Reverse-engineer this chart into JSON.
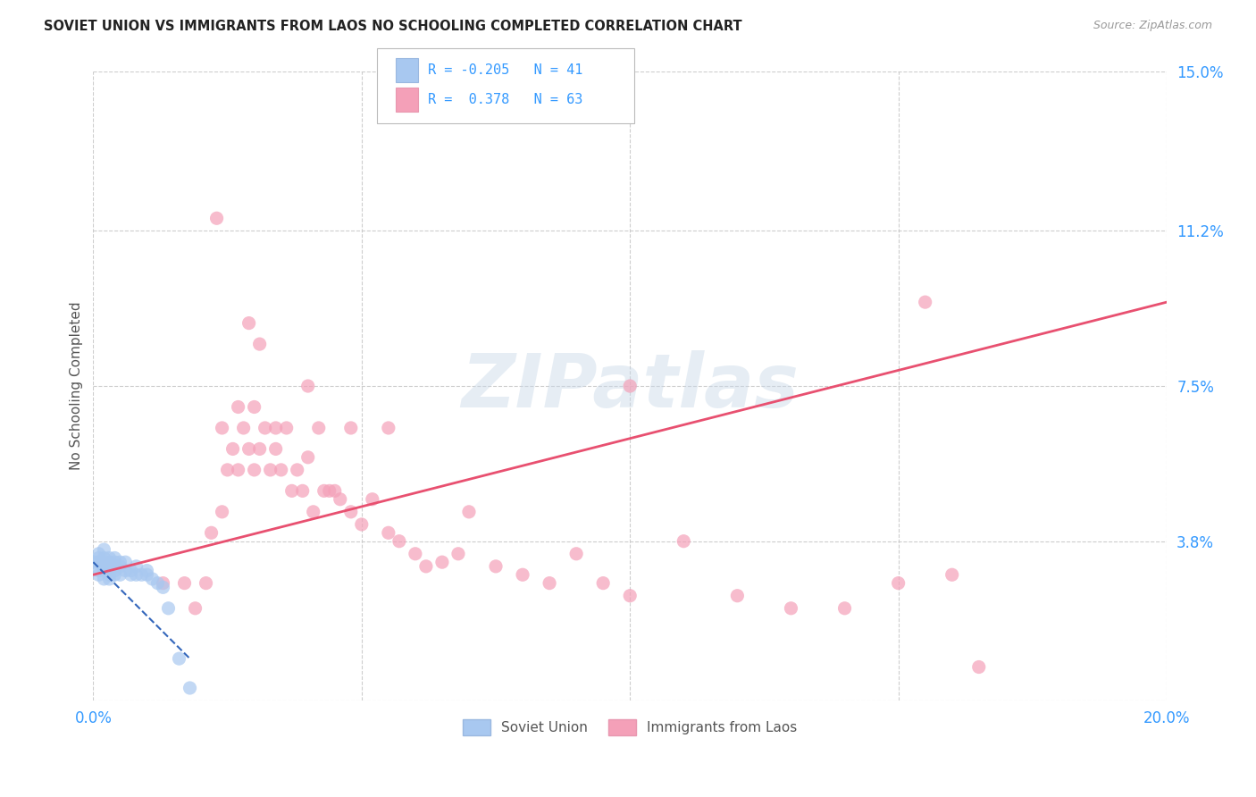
{
  "title": "SOVIET UNION VS IMMIGRANTS FROM LAOS NO SCHOOLING COMPLETED CORRELATION CHART",
  "source": "Source: ZipAtlas.com",
  "ylabel": "No Schooling Completed",
  "xlim": [
    0.0,
    0.2
  ],
  "ylim": [
    0.0,
    0.15
  ],
  "xticks": [
    0.0,
    0.05,
    0.1,
    0.15,
    0.2
  ],
  "xticklabels": [
    "0.0%",
    "",
    "",
    "",
    "20.0%"
  ],
  "ytick_positions": [
    0.0,
    0.038,
    0.075,
    0.112,
    0.15
  ],
  "yticklabels": [
    "",
    "3.8%",
    "7.5%",
    "11.2%",
    "15.0%"
  ],
  "background_color": "#ffffff",
  "grid_color": "#c8c8c8",
  "watermark": "ZIPatlas",
  "soviet_color": "#a8c8f0",
  "laos_color": "#f4a0b8",
  "soviet_line_color": "#3366bb",
  "laos_line_color": "#e85070",
  "soviet_scatter": {
    "x": [
      0.0,
      0.001,
      0.001,
      0.001,
      0.001,
      0.001,
      0.002,
      0.002,
      0.002,
      0.002,
      0.002,
      0.002,
      0.003,
      0.003,
      0.003,
      0.003,
      0.003,
      0.003,
      0.004,
      0.004,
      0.004,
      0.004,
      0.004,
      0.005,
      0.005,
      0.005,
      0.006,
      0.006,
      0.007,
      0.007,
      0.008,
      0.008,
      0.009,
      0.01,
      0.01,
      0.011,
      0.012,
      0.013,
      0.014,
      0.016,
      0.018
    ],
    "y": [
      0.033,
      0.034,
      0.031,
      0.033,
      0.035,
      0.03,
      0.033,
      0.032,
      0.034,
      0.031,
      0.029,
      0.036,
      0.033,
      0.032,
      0.03,
      0.034,
      0.031,
      0.029,
      0.033,
      0.031,
      0.03,
      0.034,
      0.032,
      0.032,
      0.03,
      0.033,
      0.031,
      0.033,
      0.031,
      0.03,
      0.03,
      0.032,
      0.03,
      0.03,
      0.031,
      0.029,
      0.028,
      0.027,
      0.022,
      0.01,
      0.003
    ]
  },
  "laos_scatter": {
    "x": [
      0.013,
      0.017,
      0.019,
      0.021,
      0.022,
      0.024,
      0.024,
      0.025,
      0.026,
      0.027,
      0.027,
      0.028,
      0.029,
      0.03,
      0.03,
      0.031,
      0.032,
      0.033,
      0.034,
      0.034,
      0.035,
      0.036,
      0.037,
      0.038,
      0.039,
      0.04,
      0.041,
      0.042,
      0.043,
      0.044,
      0.045,
      0.046,
      0.048,
      0.05,
      0.052,
      0.055,
      0.057,
      0.06,
      0.062,
      0.065,
      0.068,
      0.07,
      0.075,
      0.08,
      0.085,
      0.09,
      0.095,
      0.1,
      0.11,
      0.12,
      0.13,
      0.14,
      0.15,
      0.16,
      0.165,
      0.023,
      0.029,
      0.031,
      0.04,
      0.048,
      0.055,
      0.1,
      0.155
    ],
    "y": [
      0.028,
      0.028,
      0.022,
      0.028,
      0.04,
      0.045,
      0.065,
      0.055,
      0.06,
      0.07,
      0.055,
      0.065,
      0.06,
      0.055,
      0.07,
      0.06,
      0.065,
      0.055,
      0.065,
      0.06,
      0.055,
      0.065,
      0.05,
      0.055,
      0.05,
      0.058,
      0.045,
      0.065,
      0.05,
      0.05,
      0.05,
      0.048,
      0.045,
      0.042,
      0.048,
      0.04,
      0.038,
      0.035,
      0.032,
      0.033,
      0.035,
      0.045,
      0.032,
      0.03,
      0.028,
      0.035,
      0.028,
      0.025,
      0.038,
      0.025,
      0.022,
      0.022,
      0.028,
      0.03,
      0.008,
      0.115,
      0.09,
      0.085,
      0.075,
      0.065,
      0.065,
      0.075,
      0.095
    ]
  },
  "laos_line": {
    "x0": 0.0,
    "x1": 0.2,
    "y0": 0.03,
    "y1": 0.095
  },
  "soviet_line": {
    "x0": 0.0,
    "x1": 0.018,
    "y0": 0.033,
    "y1": 0.01
  }
}
